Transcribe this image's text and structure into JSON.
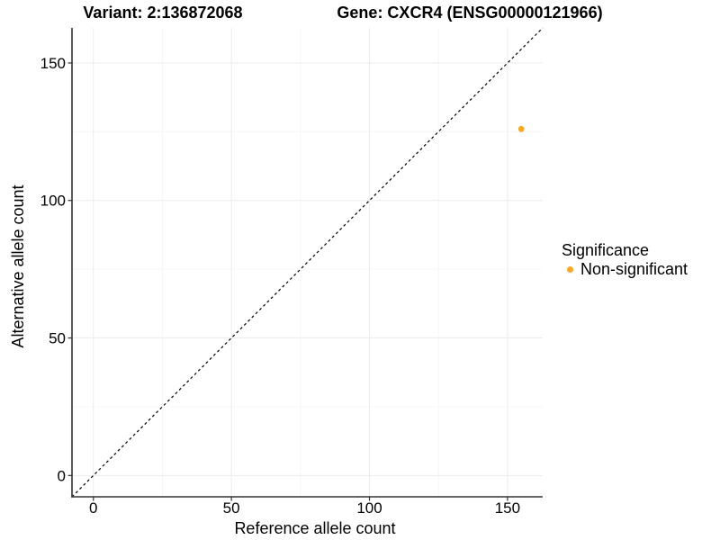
{
  "titles": {
    "left": "Variant: 2:136872068",
    "right": "Gene: CXCR4 (ENSG00000121966)"
  },
  "chart_data": {
    "type": "scatter",
    "xlabel": "Reference allele count",
    "ylabel": "Alternative allele count",
    "xlim": [
      -7.75,
      162.75
    ],
    "ylim": [
      -7.75,
      162.75
    ],
    "xticks": [
      0,
      50,
      100,
      150
    ],
    "yticks": [
      0,
      50,
      100,
      150
    ],
    "xminor": [
      25,
      75,
      125
    ],
    "yminor": [
      25,
      75,
      125
    ],
    "grid": "major+minor",
    "identity_line": {
      "style": "dashed",
      "color": "#000000"
    },
    "series": [
      {
        "name": "Non-significant",
        "color": "#F9A825",
        "point_radius": 3.4,
        "points": [
          {
            "x": 155,
            "y": 126
          }
        ]
      }
    ],
    "legend": {
      "title": "Significance",
      "position": "right",
      "entries": [
        {
          "label": "Non-significant",
          "color": "#F9A825"
        }
      ]
    }
  },
  "style_colors": {
    "background": "#ffffff",
    "grid_major": "#ebebeb",
    "grid_minor": "#f6f6f6",
    "axis_line": "#333333",
    "tick_mark": "#333333",
    "text": "#000000"
  }
}
